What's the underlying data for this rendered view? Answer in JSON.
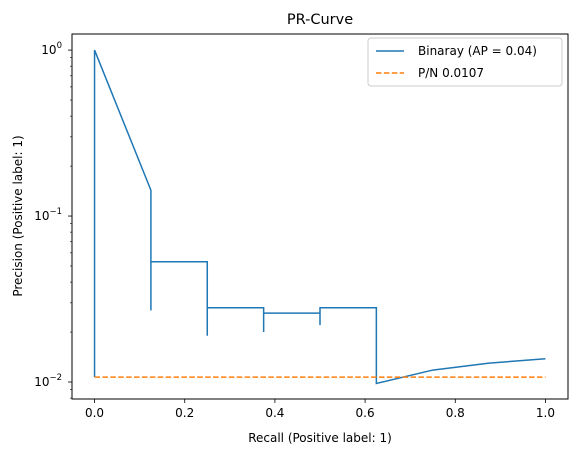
{
  "chart_data": {
    "type": "line",
    "title": "PR-Curve",
    "xlabel": "Recall (Positive label: 1)",
    "ylabel": "Precision (Positive label: 1)",
    "xlim": [
      -0.05,
      1.05
    ],
    "ylim": [
      0.0079,
      1.25
    ],
    "yscale": "log",
    "grid": false,
    "legend_position": "top-right",
    "x_ticks": [
      {
        "value": 0.0,
        "label": "0.0"
      },
      {
        "value": 0.2,
        "label": "0.2"
      },
      {
        "value": 0.4,
        "label": "0.4"
      },
      {
        "value": 0.6,
        "label": "0.6"
      },
      {
        "value": 0.8,
        "label": "0.8"
      },
      {
        "value": 1.0,
        "label": "1.0"
      }
    ],
    "y_ticks": [
      {
        "value": 1,
        "base": "10",
        "exp": "0"
      },
      {
        "value": 0.1,
        "base": "10",
        "exp": "−1"
      },
      {
        "value": 0.01,
        "base": "10",
        "exp": "−2"
      }
    ],
    "series": [
      {
        "name": "Binaray (AP = 0.04)",
        "color": "#1f77b4",
        "style": "solid",
        "drawstyle": "steps-post",
        "x": [
          0.0,
          0.0,
          0.125,
          0.125,
          0.125,
          0.25,
          0.25,
          0.25,
          0.375,
          0.375,
          0.375,
          0.5,
          0.5,
          0.5,
          0.625,
          0.625,
          0.75,
          0.875,
          1.0
        ],
        "y": [
          0.0107,
          1.0,
          0.143,
          0.027,
          0.053,
          0.053,
          0.019,
          0.028,
          0.028,
          0.02,
          0.026,
          0.026,
          0.022,
          0.028,
          0.028,
          0.0098,
          0.0118,
          0.013,
          0.0138
        ]
      },
      {
        "name": "P/N 0.0107",
        "color": "#ff7f0e",
        "style": "dashed",
        "x": [
          0.0,
          1.0
        ],
        "y": [
          0.0107,
          0.0107
        ]
      }
    ]
  }
}
